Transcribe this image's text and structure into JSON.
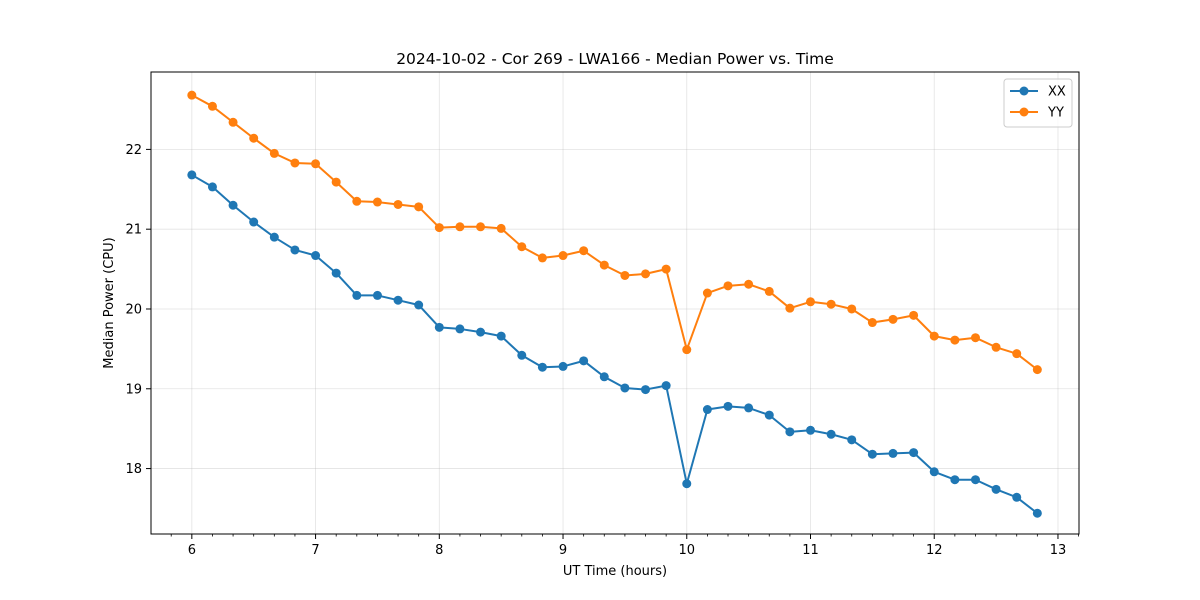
{
  "chart_data": {
    "type": "line",
    "title": "2024-10-02 - Cor 269 - LWA166 - Median Power vs. Time",
    "xlabel": "UT Time (hours)",
    "ylabel": "Median Power (CPU)",
    "xlim": [
      5.67,
      13.17
    ],
    "ylim": [
      17.18,
      22.97
    ],
    "xticks": [
      6,
      7,
      8,
      9,
      10,
      11,
      12,
      13
    ],
    "yticks": [
      18,
      19,
      20,
      21,
      22
    ],
    "xtick_labels": [
      "6",
      "7",
      "8",
      "9",
      "10",
      "11",
      "12",
      "13"
    ],
    "ytick_labels": [
      "18",
      "19",
      "20",
      "21",
      "22"
    ],
    "grid": true,
    "legend_position": "top-right",
    "x": [
      6.0,
      6.1667,
      6.3333,
      6.5,
      6.6667,
      6.8333,
      7.0,
      7.1667,
      7.3333,
      7.5,
      7.6667,
      7.8333,
      8.0,
      8.1667,
      8.3333,
      8.5,
      8.6667,
      8.8333,
      9.0,
      9.1667,
      9.3333,
      9.5,
      9.6667,
      9.8333,
      10.0,
      10.1667,
      10.3333,
      10.5,
      10.6667,
      10.8333,
      11.0,
      11.1667,
      11.3333,
      11.5,
      11.6667,
      11.8333,
      12.0,
      12.1667,
      12.3333,
      12.5,
      12.6667,
      12.8333
    ],
    "series": [
      {
        "name": "XX",
        "color": "#1f77b4",
        "values": [
          21.68,
          21.53,
          21.3,
          21.09,
          20.9,
          20.74,
          20.67,
          20.45,
          20.17,
          20.17,
          20.11,
          20.05,
          19.77,
          19.75,
          19.71,
          19.66,
          19.42,
          19.27,
          19.28,
          19.35,
          19.15,
          19.01,
          18.99,
          19.04,
          17.81,
          18.74,
          18.78,
          18.76,
          18.67,
          18.46,
          18.48,
          18.43,
          18.36,
          18.18,
          18.19,
          18.2,
          17.96,
          17.86,
          17.86,
          17.74,
          17.64,
          17.44
        ]
      },
      {
        "name": "YY",
        "color": "#ff7f0e",
        "values": [
          22.68,
          22.54,
          22.34,
          22.14,
          21.95,
          21.83,
          21.82,
          21.59,
          21.35,
          21.34,
          21.31,
          21.28,
          21.02,
          21.03,
          21.03,
          21.01,
          20.78,
          20.64,
          20.67,
          20.73,
          20.55,
          20.42,
          20.44,
          20.5,
          19.49,
          20.2,
          20.29,
          20.31,
          20.22,
          20.01,
          20.09,
          20.06,
          20.0,
          19.83,
          19.87,
          19.92,
          19.66,
          19.61,
          19.64,
          19.52,
          19.44,
          19.24
        ]
      }
    ]
  }
}
